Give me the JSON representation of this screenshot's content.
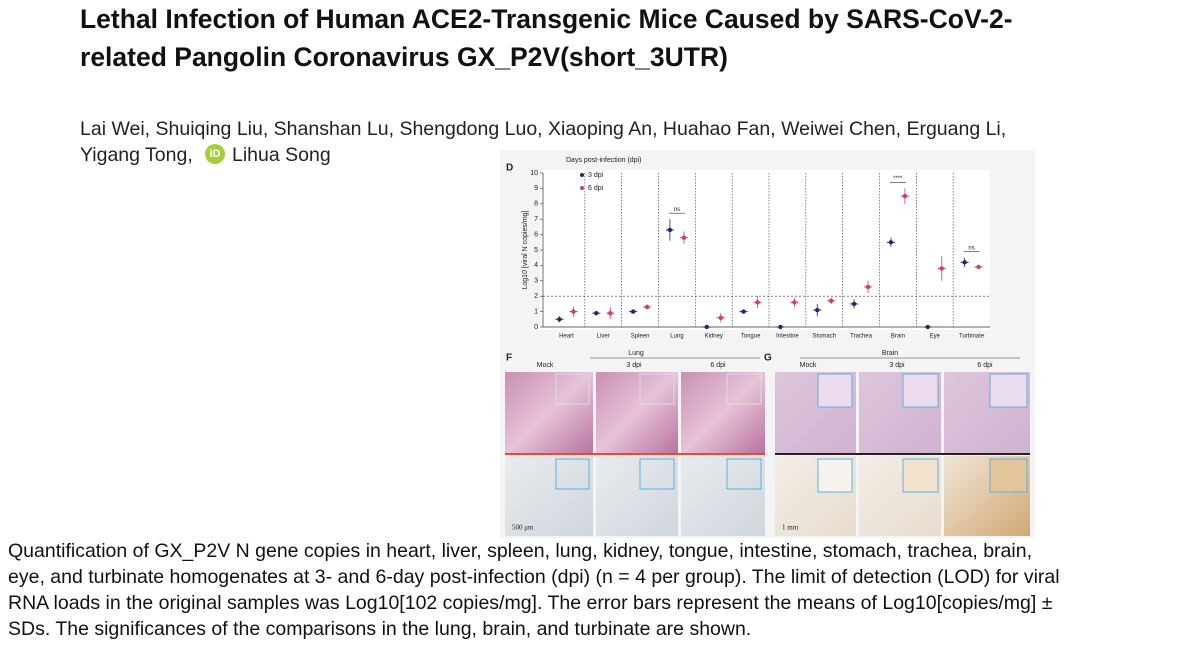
{
  "title_lines": [
    "Lethal Infection of Human ACE2-Transgenic Mice Caused by SARS-CoV-2-",
    "related Pangolin Coronavirus GX_P2V(short_3UTR)"
  ],
  "author_lines": [
    "Lai Wei, Shuiqing Liu, Shanshan Lu, Shengdong Luo, Xiaoping An, Huahao Fan, Weiwei Chen, Erguang Li,",
    "Yigang Tong,"
  ],
  "orcid_icon": "iD",
  "last_author": "Lihua Song",
  "figure": {
    "panel_d": {
      "panel_label": "D",
      "type": "dot",
      "ylabel": "Log10 [viral N copies/mg]",
      "legend_title": "Days post-infection (dpi)",
      "categories": [
        "Heart",
        "Liver",
        "Spleen",
        "Lung",
        "Kidney",
        "Tongue",
        "Intestine",
        "Stomach",
        "Trachea",
        "Brain",
        "Eye",
        "Turbinate"
      ],
      "series": [
        {
          "name": "3 dpi",
          "color": "#1b2a6e",
          "values": [
            0.5,
            0.9,
            1.0,
            6.3,
            0,
            1.0,
            0,
            1.1,
            1.5,
            5.5,
            0,
            4.2
          ],
          "errors": [
            0.2,
            0.05,
            0.05,
            0.7,
            0,
            0.05,
            0,
            0.4,
            0.3,
            0.3,
            0,
            0.3
          ]
        },
        {
          "name": "6 dpi",
          "color": "#d43a6a",
          "values": [
            1.0,
            0.9,
            1.3,
            5.8,
            0.6,
            1.6,
            1.6,
            1.7,
            2.6,
            8.5,
            3.8,
            3.9
          ],
          "errors": [
            0.3,
            0.4,
            0.15,
            0.4,
            0.3,
            0.4,
            0.3,
            0.2,
            0.4,
            0.5,
            0.8,
            0.1
          ]
        }
      ],
      "ylim": [
        0,
        10
      ],
      "yticks": [
        0,
        1,
        2,
        3,
        4,
        5,
        6,
        7,
        8,
        9,
        10
      ],
      "lod_line": 2,
      "significance": [
        {
          "category": "Lung",
          "label": "ns"
        },
        {
          "category": "Brain",
          "label": "****"
        },
        {
          "category": "Turbinate",
          "label": "ns"
        }
      ]
    },
    "panel_f": {
      "panel_label": "F",
      "tissue": "Lung",
      "columns": [
        "Mock",
        "3 dpi",
        "6 dpi"
      ],
      "scale_bar": "500 μm"
    },
    "panel_g": {
      "panel_label": "G",
      "tissue": "Brain",
      "columns": [
        "Mock",
        "3 dpi",
        "6 dpi"
      ],
      "scale_bar": "1 mm"
    }
  },
  "caption_lines": [
    "Quantification of GX_P2V N gene copies in heart, liver, spleen, lung, kidney, tongue, intestine, stomach, trachea, brain,",
    "eye, and turbinate homogenates at 3- and 6-day post-infection (dpi) (n = 4 per group). The limit of detection (LOD) for viral",
    "RNA loads in the original samples was Log10[102 copies/mg]. The error bars represent the means of Log10[copies/mg] ±",
    "SDs. The significances of the comparisons in the lung, brain, and turbinate are shown."
  ]
}
